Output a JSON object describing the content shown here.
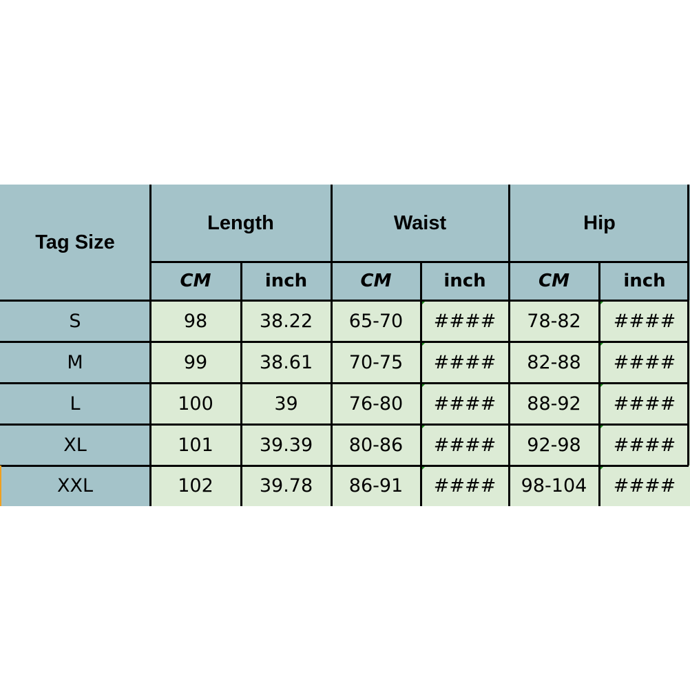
{
  "table": {
    "corner_label": "Tag Size",
    "groups": [
      "Length",
      "Waist",
      "Hip"
    ],
    "units": [
      "CM",
      "inch",
      "CM",
      "inch",
      "CM",
      "inch"
    ],
    "rows": [
      {
        "size": "S",
        "values": [
          "98",
          "38.22",
          "65-70",
          "####",
          "78-82",
          "####"
        ]
      },
      {
        "size": "M",
        "values": [
          "99",
          "38.61",
          "70-75",
          "####",
          "82-88",
          "####"
        ]
      },
      {
        "size": "L",
        "values": [
          "100",
          "39",
          "76-80",
          "####",
          "88-92",
          "####"
        ]
      },
      {
        "size": "XL",
        "values": [
          "101",
          "39.39",
          "80-86",
          "####",
          "92-98",
          "####"
        ]
      },
      {
        "size": "XXL",
        "values": [
          "102",
          "39.78",
          "86-91",
          "####",
          "98-104",
          "####"
        ]
      }
    ],
    "colors": {
      "header": "#a4c3c9",
      "data": "#dcebd5",
      "comment_marker": "#1a8a1a"
    }
  }
}
